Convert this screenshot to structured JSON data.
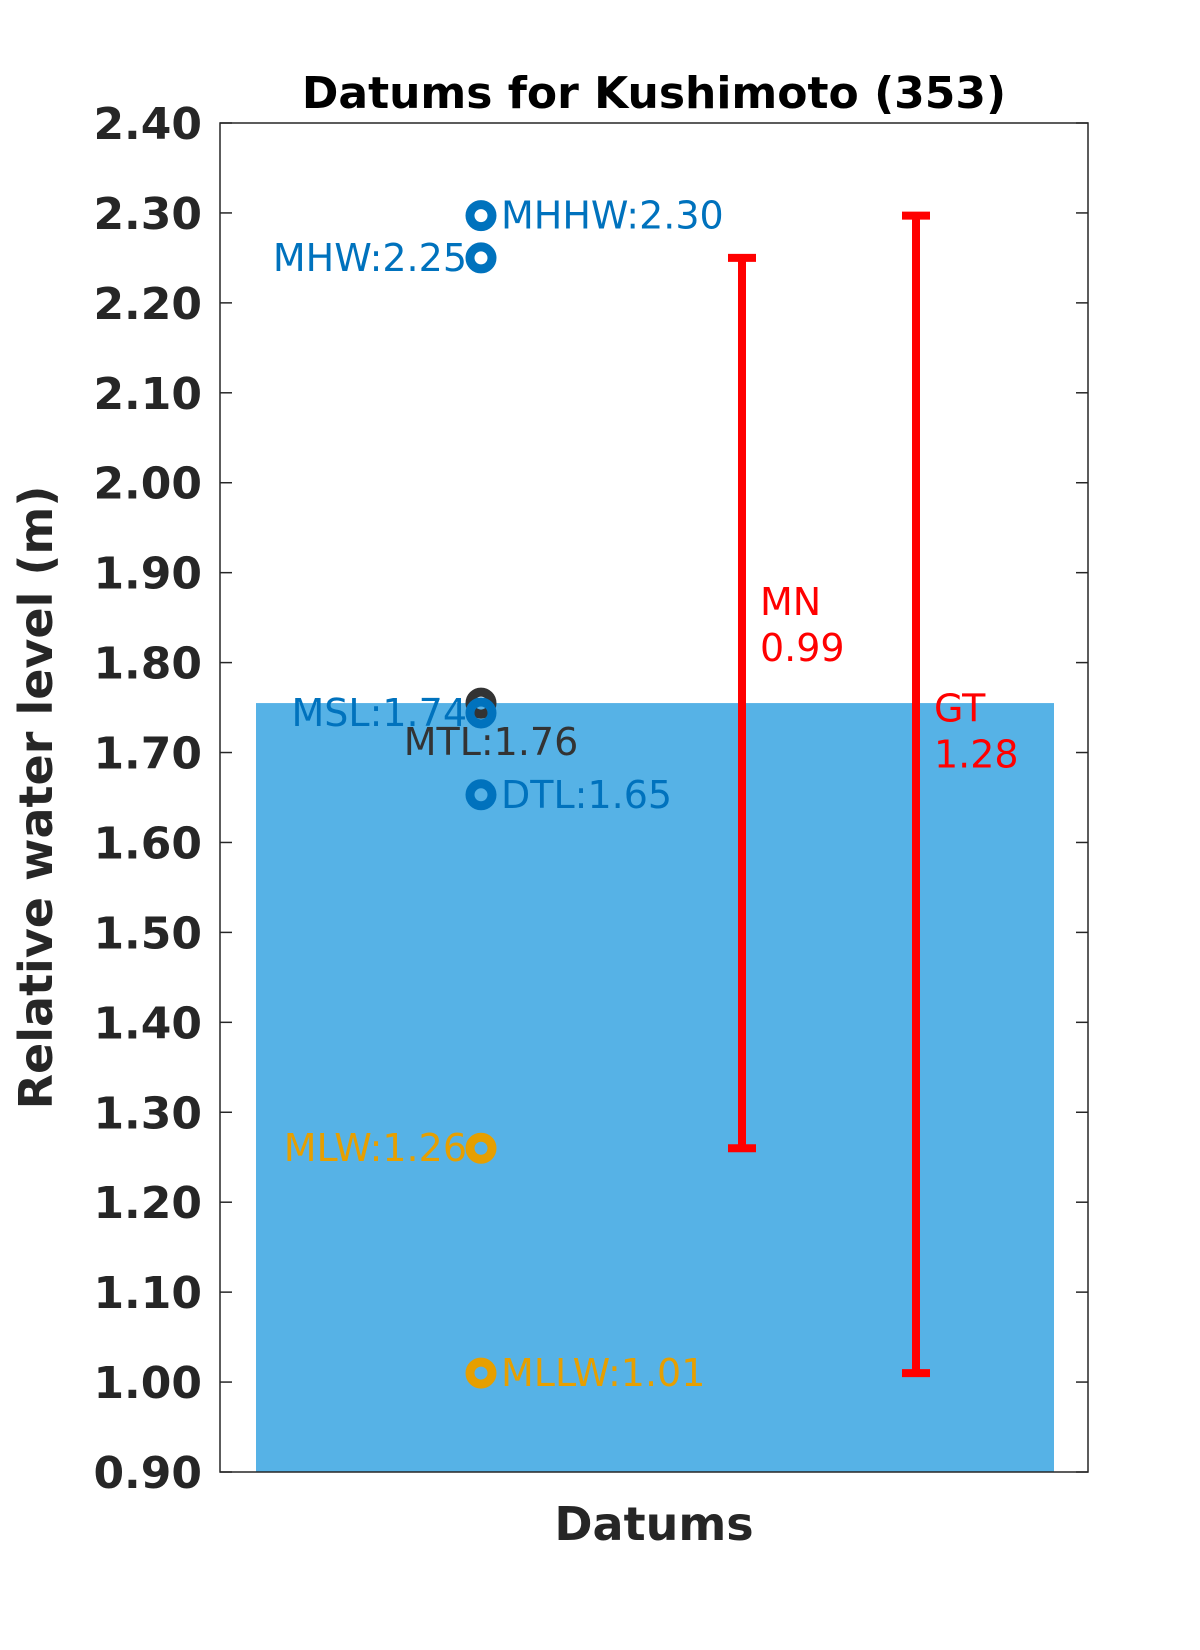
{
  "chart_data": {
    "type": "scatter",
    "title": "Datums for Kushimoto (353)",
    "xlabel": "Datums",
    "ylabel": "Relative water level (m)",
    "ylim": [
      0.9,
      2.4
    ],
    "yticks": [
      "0.90",
      "1.00",
      "1.10",
      "1.20",
      "1.30",
      "1.40",
      "1.50",
      "1.60",
      "1.70",
      "1.80",
      "1.90",
      "2.00",
      "2.10",
      "2.20",
      "2.30",
      "2.40"
    ],
    "grid": false,
    "fill_level": 1.755,
    "colors": {
      "fill": "#56B2E6",
      "high": "#0072BD",
      "mid": "#333333",
      "low": "#E69F00",
      "range": "#FF0000",
      "axis": "#262626"
    },
    "datums": [
      {
        "label": "MHHW:2.30",
        "value": 2.297,
        "color": "high",
        "side": "right"
      },
      {
        "label": "MHW:2.25",
        "value": 2.25,
        "color": "high",
        "side": "left"
      },
      {
        "label": "MTL:1.76",
        "value": 1.755,
        "color": "mid",
        "side": "below"
      },
      {
        "label": "MSL:1.74",
        "value": 1.744,
        "color": "high",
        "side": "left"
      },
      {
        "label": "DTL:1.65",
        "value": 1.653,
        "color": "high",
        "side": "right"
      },
      {
        "label": "MLW:1.26",
        "value": 1.26,
        "color": "low",
        "side": "left"
      },
      {
        "label": "MLLW:1.01",
        "value": 1.01,
        "color": "low",
        "side": "right"
      }
    ],
    "ranges": [
      {
        "name": "MN",
        "value_text": "0.99",
        "low": 1.26,
        "high": 2.25
      },
      {
        "name": "GT",
        "value_text": "1.28",
        "low": 1.01,
        "high": 2.297
      }
    ]
  }
}
